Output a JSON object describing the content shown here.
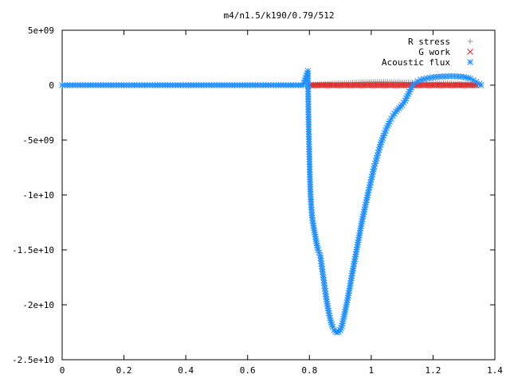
{
  "chart_data": {
    "type": "scatter",
    "title": "m4/n1.5/k190/0.79/512",
    "xlabel": "",
    "ylabel": "",
    "xlim": [
      0,
      1.4
    ],
    "ylim": [
      -25000000000,
      5000000000
    ],
    "grid": false,
    "legend_position": "top-right",
    "x_ticks": [
      {
        "value": 0,
        "label": "0"
      },
      {
        "value": 0.2,
        "label": "0.2"
      },
      {
        "value": 0.4,
        "label": "0.4"
      },
      {
        "value": 0.6,
        "label": "0.6"
      },
      {
        "value": 0.8,
        "label": "0.8"
      },
      {
        "value": 1.0,
        "label": "1"
      },
      {
        "value": 1.2,
        "label": "1.2"
      },
      {
        "value": 1.4,
        "label": "1.4"
      }
    ],
    "y_ticks": [
      {
        "value": 5000000000,
        "label": "5e+09"
      },
      {
        "value": 0,
        "label": "0"
      },
      {
        "value": -5000000000,
        "label": "-5e+09"
      },
      {
        "value": -10000000000,
        "label": "-1e+10"
      },
      {
        "value": -15000000000,
        "label": "-1.5e+10"
      },
      {
        "value": -20000000000,
        "label": "-2e+10"
      },
      {
        "value": -25000000000,
        "label": "-2.5e+10"
      }
    ],
    "series": [
      {
        "name": "R stress",
        "marker": "plus",
        "color": "#999999",
        "points": [
          [
            0.8,
            0
          ],
          [
            0.84,
            100000000.0
          ],
          [
            0.88,
            150000000.0
          ],
          [
            0.92,
            200000000.0
          ],
          [
            0.96,
            250000000.0
          ],
          [
            1.0,
            300000000.0
          ],
          [
            1.04,
            300000000.0
          ],
          [
            1.08,
            280000000.0
          ],
          [
            1.12,
            250000000.0
          ],
          [
            1.16,
            220000000.0
          ],
          [
            1.2,
            200000000.0
          ],
          [
            1.24,
            180000000.0
          ],
          [
            1.28,
            150000000.0
          ],
          [
            1.32,
            100000000.0
          ],
          [
            1.35,
            0
          ]
        ]
      },
      {
        "name": "G work",
        "marker": "cross",
        "color": "#e02020",
        "points": [
          [
            0.8,
            0
          ],
          [
            0.83,
            0
          ],
          [
            0.86,
            0
          ],
          [
            0.89,
            0
          ],
          [
            0.92,
            0
          ],
          [
            0.95,
            0
          ],
          [
            0.98,
            0
          ],
          [
            1.01,
            0
          ],
          [
            1.04,
            0
          ],
          [
            1.07,
            0
          ],
          [
            1.1,
            0
          ],
          [
            1.13,
            0
          ],
          [
            1.16,
            0
          ],
          [
            1.19,
            0
          ],
          [
            1.22,
            0
          ],
          [
            1.25,
            0
          ],
          [
            1.28,
            0
          ],
          [
            1.31,
            0
          ],
          [
            1.34,
            0
          ]
        ]
      },
      {
        "name": "Acoustic flux",
        "marker": "star",
        "color": "#1e90ff",
        "points": [
          [
            0.0,
            0
          ],
          [
            0.1,
            0
          ],
          [
            0.2,
            0
          ],
          [
            0.3,
            0
          ],
          [
            0.4,
            0
          ],
          [
            0.5,
            0
          ],
          [
            0.6,
            0
          ],
          [
            0.7,
            0
          ],
          [
            0.78,
            0
          ],
          [
            0.795,
            1300000000.0
          ],
          [
            0.797,
            -2900000000.0
          ],
          [
            0.799,
            -5600000000.0
          ],
          [
            0.801,
            -7900000000.0
          ],
          [
            0.803,
            -9700000000.0
          ],
          [
            0.806,
            -11100000000.0
          ],
          [
            0.809,
            -12100000000.0
          ],
          [
            0.813,
            -12800000000.0
          ],
          [
            0.818,
            -13600000000.0
          ],
          [
            0.823,
            -14400000000.0
          ],
          [
            0.828,
            -15000000000.0
          ],
          [
            0.835,
            -15500000000.0
          ],
          [
            0.84,
            -16500000000.0
          ],
          [
            0.845,
            -17500000000.0
          ],
          [
            0.85,
            -18500000000.0
          ],
          [
            0.855,
            -19500000000.0
          ],
          [
            0.86,
            -20300000000.0
          ],
          [
            0.865,
            -21000000000.0
          ],
          [
            0.87,
            -21600000000.0
          ],
          [
            0.875,
            -22000000000.0
          ],
          [
            0.88,
            -22300000000.0
          ],
          [
            0.885,
            -22450000000.0
          ],
          [
            0.89,
            -22500000000.0
          ],
          [
            0.895,
            -22450000000.0
          ],
          [
            0.9,
            -22300000000.0
          ],
          [
            0.905,
            -21900000000.0
          ],
          [
            0.91,
            -21300000000.0
          ],
          [
            0.92,
            -20000000000.0
          ],
          [
            0.93,
            -18500000000.0
          ],
          [
            0.94,
            -16900000000.0
          ],
          [
            0.95,
            -15400000000.0
          ],
          [
            0.96,
            -13900000000.0
          ],
          [
            0.97,
            -12400000000.0
          ],
          [
            0.98,
            -11100000000.0
          ],
          [
            0.99,
            -9800000000.0
          ],
          [
            1.0,
            -8600000000.0
          ],
          [
            1.01,
            -7400000000.0
          ],
          [
            1.02,
            -6400000000.0
          ],
          [
            1.03,
            -5400000000.0
          ],
          [
            1.04,
            -4600000000.0
          ],
          [
            1.05,
            -3900000000.0
          ],
          [
            1.06,
            -3300000000.0
          ],
          [
            1.07,
            -2800000000.0
          ],
          [
            1.08,
            -2400000000.0
          ],
          [
            1.09,
            -2100000000.0
          ],
          [
            1.1,
            -1800000000.0
          ],
          [
            1.11,
            -1400000000.0
          ],
          [
            1.12,
            -800000000.0
          ],
          [
            1.13,
            -200000000.0
          ],
          [
            1.14,
            150000000.0
          ],
          [
            1.15,
            350000000.0
          ],
          [
            1.16,
            500000000.0
          ],
          [
            1.18,
            620000000.0
          ],
          [
            1.2,
            720000000.0
          ],
          [
            1.22,
            780000000.0
          ],
          [
            1.24,
            800000000.0
          ],
          [
            1.26,
            820000000.0
          ],
          [
            1.28,
            800000000.0
          ],
          [
            1.3,
            750000000.0
          ],
          [
            1.32,
            600000000.0
          ],
          [
            1.33,
            450000000.0
          ],
          [
            1.34,
            300000000.0
          ],
          [
            1.35,
            120000000.0
          ],
          [
            1.355,
            0
          ]
        ]
      }
    ]
  }
}
